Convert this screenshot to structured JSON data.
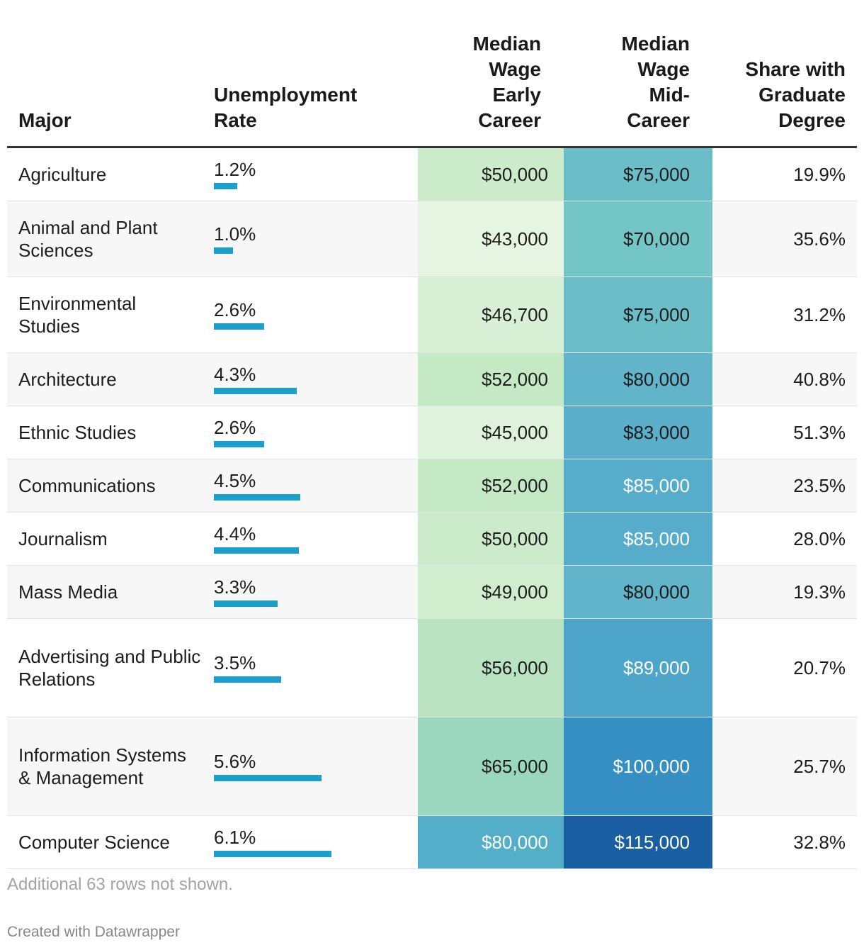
{
  "chart_data": {
    "type": "table",
    "columns": [
      "Major",
      "Unemployment Rate",
      "Median Wage Early Career",
      "Median Wage Mid-Career",
      "Share with Graduate Degree"
    ],
    "header_lines": {
      "major": [
        "Major"
      ],
      "unemp": [
        "Unemployment",
        "Rate"
      ],
      "early": [
        "Median",
        "Wage",
        "Early",
        "Career"
      ],
      "mid": [
        "Median",
        "Wage",
        "Mid-",
        "Career"
      ],
      "grad": [
        "Share with",
        "Graduate",
        "Degree"
      ]
    },
    "unemployment_bar_max": 6.1,
    "unemployment_color": "#1ba0ce",
    "rows": [
      {
        "major": "Agriculture",
        "unemployment": "1.2%",
        "unemployment_value": 1.2,
        "early": "$50,000",
        "early_value": 50000,
        "mid": "$75,000",
        "mid_value": 75000,
        "grad": "19.9%"
      },
      {
        "major": "Animal and Plant Sciences",
        "unemployment": "1.0%",
        "unemployment_value": 1.0,
        "early": "$43,000",
        "early_value": 43000,
        "mid": "$70,000",
        "mid_value": 70000,
        "grad": "35.6%"
      },
      {
        "major": "Environmental Studies",
        "unemployment": "2.6%",
        "unemployment_value": 2.6,
        "early": "$46,700",
        "early_value": 46700,
        "mid": "$75,000",
        "mid_value": 75000,
        "grad": "31.2%"
      },
      {
        "major": "Architecture",
        "unemployment": "4.3%",
        "unemployment_value": 4.3,
        "early": "$52,000",
        "early_value": 52000,
        "mid": "$80,000",
        "mid_value": 80000,
        "grad": "40.8%"
      },
      {
        "major": "Ethnic Studies",
        "unemployment": "2.6%",
        "unemployment_value": 2.6,
        "early": "$45,000",
        "early_value": 45000,
        "mid": "$83,000",
        "mid_value": 83000,
        "grad": "51.3%"
      },
      {
        "major": "Communications",
        "unemployment": "4.5%",
        "unemployment_value": 4.5,
        "early": "$52,000",
        "early_value": 52000,
        "mid": "$85,000",
        "mid_value": 85000,
        "grad": "23.5%"
      },
      {
        "major": "Journalism",
        "unemployment": "4.4%",
        "unemployment_value": 4.4,
        "early": "$50,000",
        "early_value": 50000,
        "mid": "$85,000",
        "mid_value": 85000,
        "grad": "28.0%"
      },
      {
        "major": "Mass Media",
        "unemployment": "3.3%",
        "unemployment_value": 3.3,
        "early": "$49,000",
        "early_value": 49000,
        "mid": "$80,000",
        "mid_value": 80000,
        "grad": "19.3%"
      },
      {
        "major": "Advertising and Public Relations",
        "unemployment": "3.5%",
        "unemployment_value": 3.5,
        "early": "$56,000",
        "early_value": 56000,
        "mid": "$89,000",
        "mid_value": 89000,
        "grad": "20.7%"
      },
      {
        "major": "Information Systems & Management",
        "unemployment": "5.6%",
        "unemployment_value": 5.6,
        "early": "$65,000",
        "early_value": 65000,
        "mid": "$100,000",
        "mid_value": 100000,
        "grad": "25.7%"
      },
      {
        "major": "Computer Science",
        "unemployment": "6.1%",
        "unemployment_value": 6.1,
        "early": "$80,000",
        "early_value": 80000,
        "mid": "$115,000",
        "mid_value": 115000,
        "grad": "32.8%"
      }
    ],
    "color_scale": {
      "early": {
        "min": 43000,
        "max": 80000,
        "stops": [
          "#e6f5e1",
          "#c4e8c4",
          "#a9dcbd",
          "#85cdc2",
          "#52aec9"
        ]
      },
      "mid": {
        "min": 70000,
        "max": 115000,
        "stops": [
          "#74c6c6",
          "#5fb2cb",
          "#45a0ca",
          "#2f86be",
          "#1a5fa3"
        ]
      }
    }
  },
  "notes": {
    "footnote": "Additional 63 rows not shown.",
    "credit": "Created with Datawrapper"
  }
}
